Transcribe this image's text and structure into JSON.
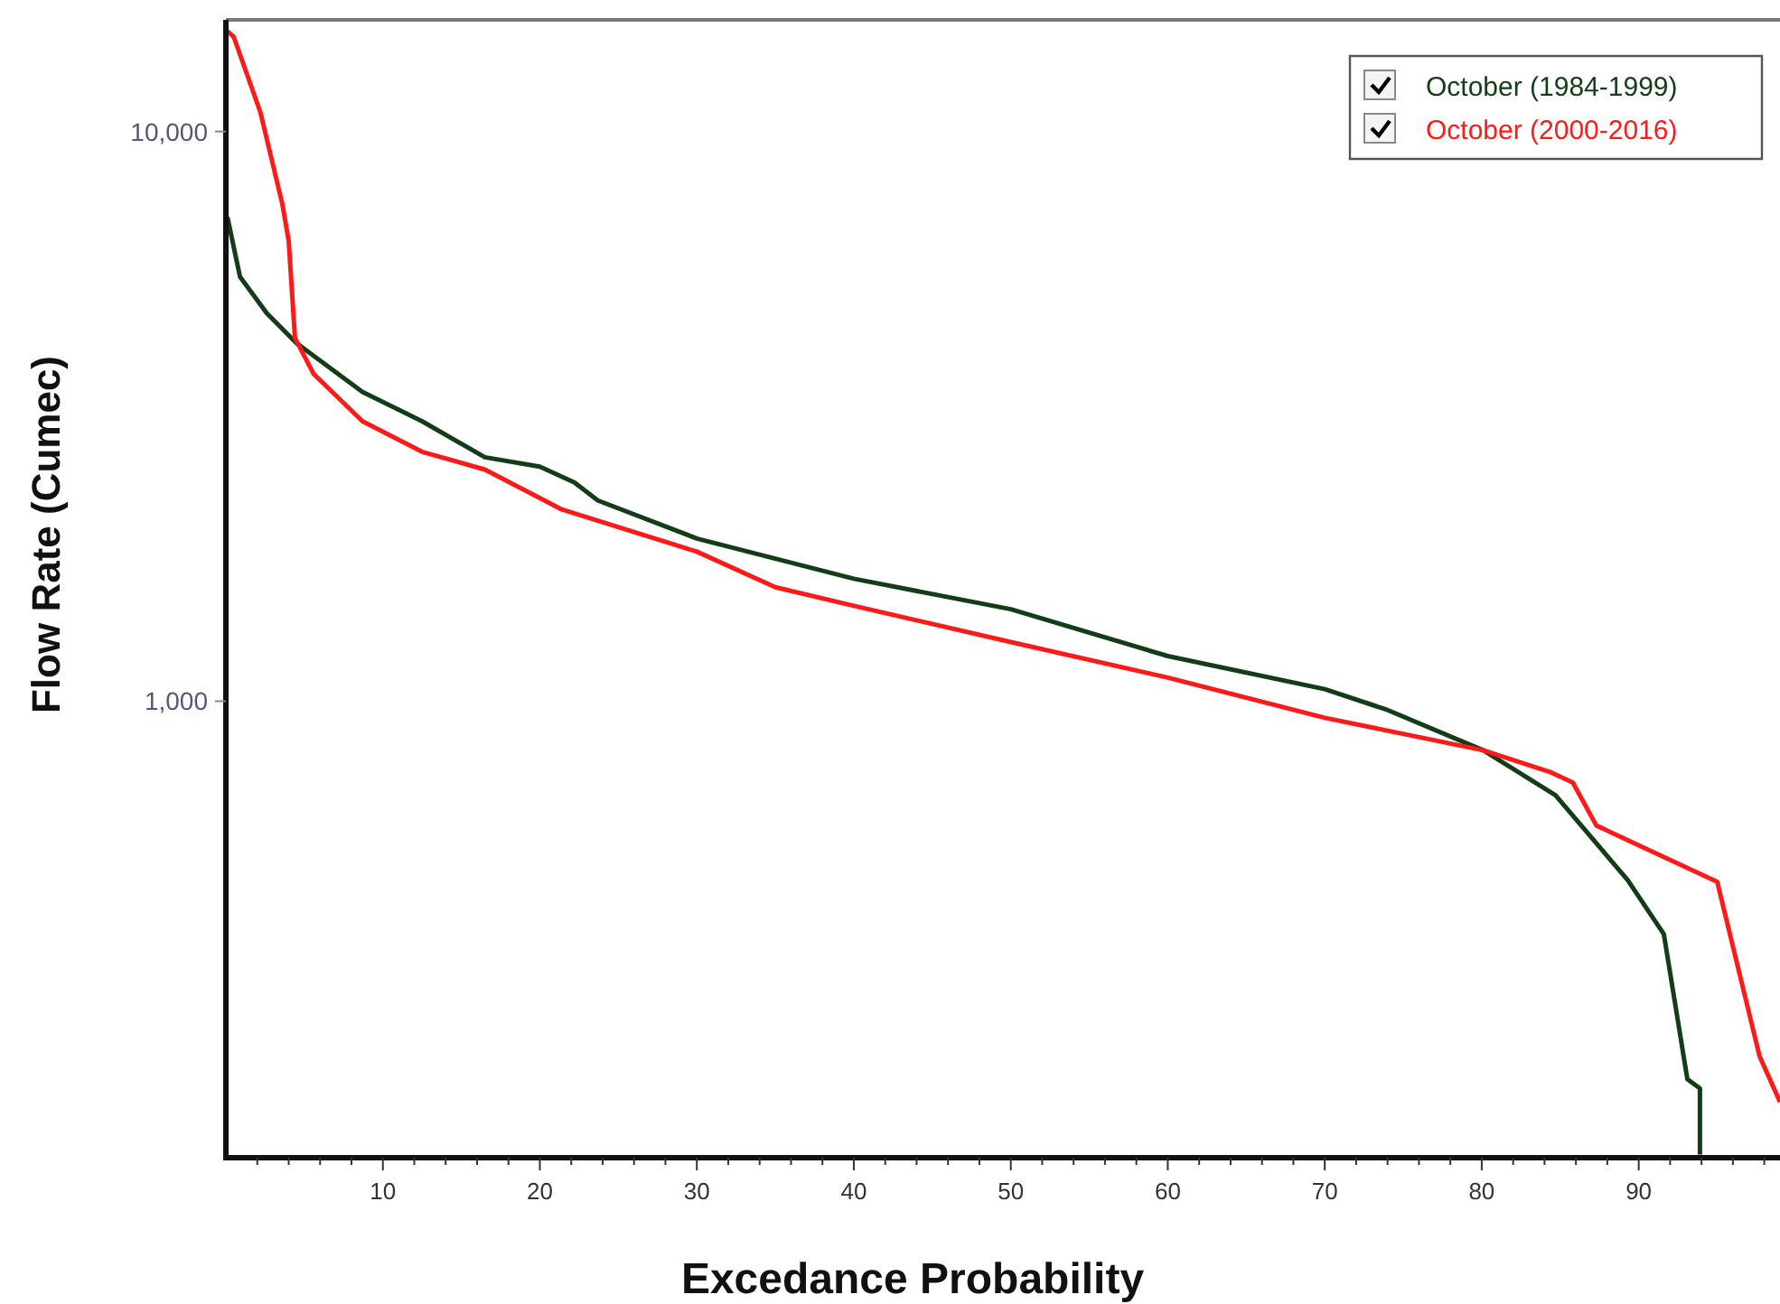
{
  "chart_data": {
    "type": "line",
    "xlabel": "Excedance Probability",
    "ylabel": "Flow Rate (Cumec)",
    "log": "y",
    "xlim": [
      0,
      99
    ],
    "ylim": [
      158,
      15700
    ],
    "xticks": [
      {
        "value": 2,
        "label": null
      },
      {
        "value": 4,
        "label": null
      },
      {
        "value": 6,
        "label": null
      },
      {
        "value": 8,
        "label": null
      },
      10,
      {
        "value": 12,
        "label": null
      },
      {
        "value": 14,
        "label": null
      },
      {
        "value": 16,
        "label": null
      },
      {
        "value": 18,
        "label": null
      },
      20,
      {
        "value": 22,
        "label": null
      },
      {
        "value": 24,
        "label": null
      },
      {
        "value": 26,
        "label": null
      },
      {
        "value": 28,
        "label": null
      },
      30,
      {
        "value": 32,
        "label": null
      },
      {
        "value": 34,
        "label": null
      },
      {
        "value": 36,
        "label": null
      },
      {
        "value": 38,
        "label": null
      },
      40,
      {
        "value": 42,
        "label": null
      },
      {
        "value": 44,
        "label": null
      },
      {
        "value": 46,
        "label": null
      },
      {
        "value": 48,
        "label": null
      },
      50,
      {
        "value": 52,
        "label": null
      },
      {
        "value": 54,
        "label": null
      },
      {
        "value": 56,
        "label": null
      },
      {
        "value": 58,
        "label": null
      },
      60,
      {
        "value": 62,
        "label": null
      },
      {
        "value": 64,
        "label": null
      },
      {
        "value": 66,
        "label": null
      },
      {
        "value": 68,
        "label": null
      },
      70,
      {
        "value": 72,
        "label": null
      },
      {
        "value": 74,
        "label": null
      },
      {
        "value": 76,
        "label": null
      },
      {
        "value": 78,
        "label": null
      },
      80,
      {
        "value": 82,
        "label": null
      },
      {
        "value": 84,
        "label": null
      },
      {
        "value": 86,
        "label": null
      },
      {
        "value": 88,
        "label": null
      },
      90,
      {
        "value": 92,
        "label": null
      },
      {
        "value": 94,
        "label": null
      },
      {
        "value": 96,
        "label": null
      },
      {
        "value": 98,
        "label": null
      }
    ],
    "yticks": [
      {
        "value": 1000,
        "label": "1,000"
      },
      {
        "value": 10000,
        "label": "10,000"
      }
    ],
    "grid": false,
    "legend": "top right",
    "line_style": "solid",
    "marker": "none",
    "series": [
      {
        "name": "October (1984-1999)",
        "color": "#123d16",
        "x": [
          0.1,
          0.9,
          2.6,
          4.5,
          8.7,
          12.5,
          16.5,
          20,
          22.2,
          23.7,
          30,
          40,
          50,
          60,
          70,
          74,
          80.1,
          84.7,
          89.3,
          91.6,
          93.1,
          93.9,
          93.9
        ],
        "values": [
          7070,
          5560,
          4800,
          4250,
          3490,
          3100,
          2680,
          2580,
          2420,
          2250,
          1930,
          1640,
          1450,
          1200,
          1050,
          965,
          820,
          684,
          485,
          390,
          217,
          209,
          160
        ]
      },
      {
        "name": "October (2000-2016)",
        "color": "#ff1a1a",
        "x": [
          0.1,
          0.5,
          2.2,
          3.6,
          4.0,
          4.4,
          5.6,
          8.7,
          12.5,
          16.5,
          20.3,
          21.4,
          30,
          35,
          40,
          50,
          60,
          70,
          80.1,
          84.3,
          85.8,
          87.3,
          95,
          97.7,
          99
        ],
        "values": [
          15000,
          14660,
          10800,
          7450,
          6430,
          4340,
          3750,
          3100,
          2740,
          2550,
          2250,
          2170,
          1830,
          1585,
          1470,
          1270,
          1100,
          935,
          820,
          752,
          720,
          605,
          482,
          238,
          198
        ]
      }
    ]
  }
}
